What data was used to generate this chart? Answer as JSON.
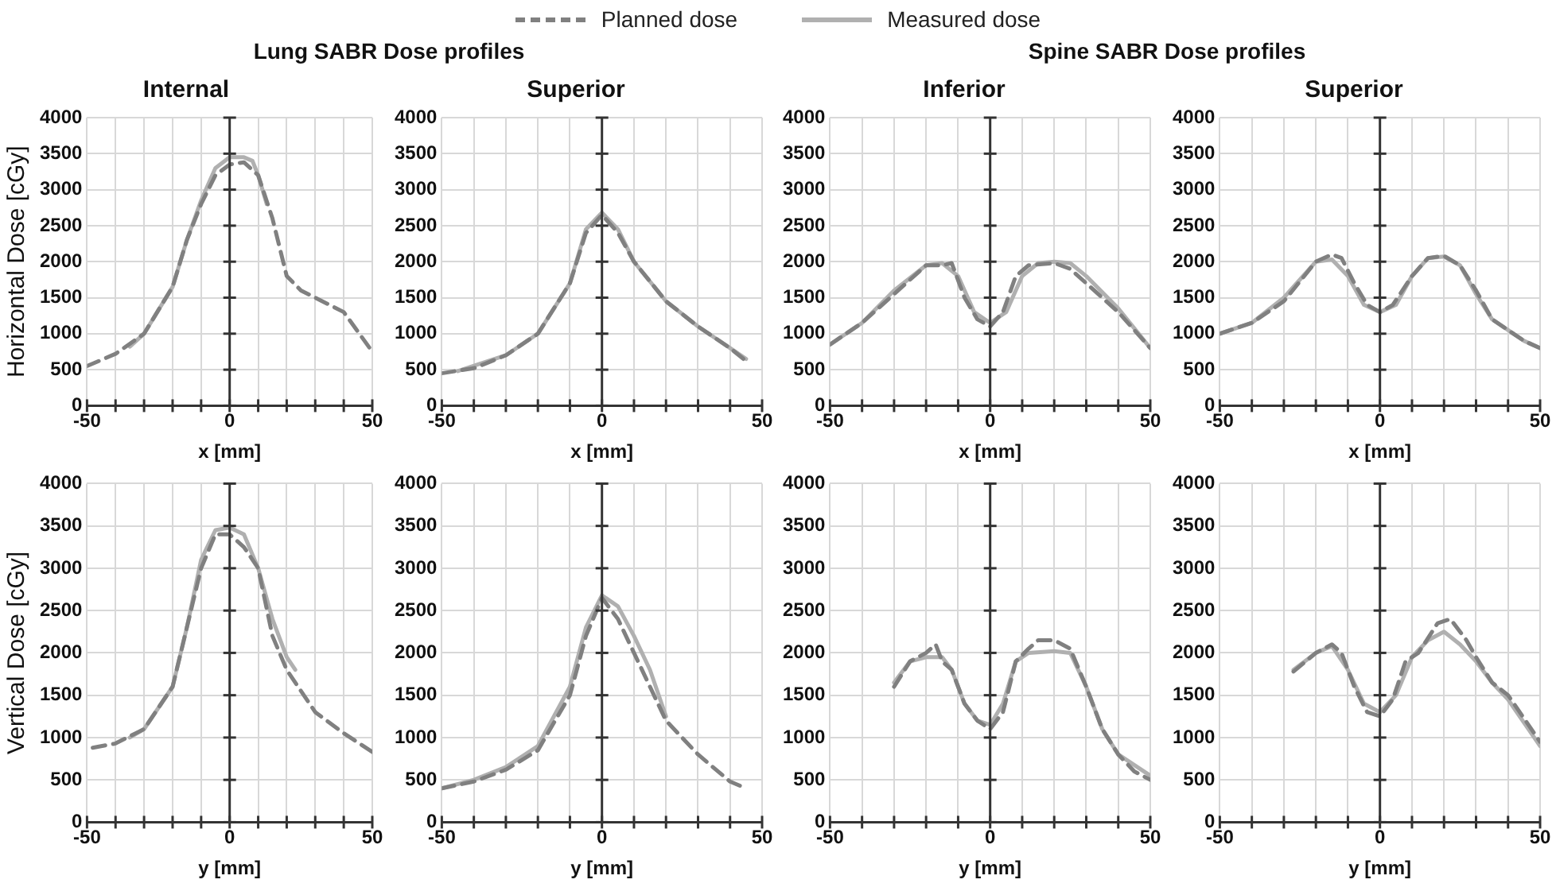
{
  "chart_data": [
    {
      "type": "line",
      "title": "Internal",
      "ylabel": "Horizontal Dose [cGy]",
      "xlabel": "x [mm]",
      "annotations": [
        "Lung SABR Dose profiles"
      ],
      "legend": "top",
      "grid": true,
      "marker": "none",
      "xlim": [
        -50,
        50
      ],
      "xticks": [
        -50,
        {
          "value": -40,
          "label": null
        },
        {
          "value": -30,
          "label": null
        },
        {
          "value": -20,
          "label": null
        },
        {
          "value": -10,
          "label": null
        },
        0,
        {
          "value": 10,
          "label": null
        },
        {
          "value": 20,
          "label": null
        },
        {
          "value": 30,
          "label": null
        },
        {
          "value": 40,
          "label": null
        },
        50
      ],
      "ylim": [
        0,
        4000
      ],
      "yticks": [
        0,
        500,
        1000,
        1500,
        2000,
        2500,
        3000,
        3500,
        4000
      ],
      "ref_lines": [
        {
          "axis": "x",
          "value": 0,
          "color": "#333333"
        }
      ],
      "series": [
        {
          "name": "Planned dose",
          "color": "#808080",
          "line_style": "dashed",
          "x": [
            -50,
            -40,
            -30,
            -20,
            -15,
            -10,
            -5,
            0,
            5,
            10,
            15,
            20,
            25,
            30,
            40,
            50
          ],
          "values": [
            550,
            720,
            1000,
            1650,
            2300,
            2800,
            3200,
            3350,
            3380,
            3200,
            2600,
            1800,
            1600,
            1500,
            1300,
            750
          ]
        },
        {
          "name": "Measured dose",
          "color": "#b0b0b0",
          "line_style": "solid",
          "x": [
            -35,
            -30,
            -20,
            -15,
            -10,
            -5,
            0,
            5,
            8,
            10,
            13
          ],
          "values": [
            820,
            1000,
            1650,
            2300,
            2850,
            3300,
            3450,
            3450,
            3400,
            3200,
            2800
          ]
        }
      ]
    },
    {
      "type": "line",
      "title": "Superior",
      "xlabel": "x [mm]",
      "grid": true,
      "marker": "none",
      "xlim": [
        -50,
        50
      ],
      "xticks": [
        -50,
        {
          "value": -40,
          "label": null
        },
        {
          "value": -30,
          "label": null
        },
        {
          "value": -20,
          "label": null
        },
        {
          "value": -10,
          "label": null
        },
        0,
        {
          "value": 10,
          "label": null
        },
        {
          "value": 20,
          "label": null
        },
        {
          "value": 30,
          "label": null
        },
        {
          "value": 40,
          "label": null
        },
        50
      ],
      "ylim": [
        0,
        4000
      ],
      "yticks": [
        0,
        500,
        1000,
        1500,
        2000,
        2500,
        3000,
        3500,
        4000
      ],
      "ref_lines": [
        {
          "axis": "x",
          "value": 0,
          "color": "#333333"
        }
      ],
      "series": [
        {
          "color": "#808080",
          "line_style": "dashed",
          "x": [
            -50,
            -40,
            -30,
            -20,
            -10,
            -5,
            0,
            5,
            10,
            20,
            30,
            40,
            45
          ],
          "values": [
            450,
            520,
            700,
            1000,
            1700,
            2400,
            2650,
            2400,
            2000,
            1450,
            1100,
            800,
            620
          ]
        },
        {
          "color": "#b0b0b0",
          "line_style": "solid",
          "x": [
            -45,
            -30,
            -20,
            -10,
            -5,
            0,
            5,
            10,
            20,
            30,
            40,
            45
          ],
          "values": [
            480,
            700,
            1000,
            1700,
            2450,
            2680,
            2450,
            2000,
            1450,
            1100,
            800,
            650
          ]
        }
      ]
    },
    {
      "type": "line",
      "title": "Inferior",
      "xlabel": "x [mm]",
      "annotations": [
        "Spine SABR Dose profiles"
      ],
      "grid": true,
      "marker": "none",
      "xlim": [
        -50,
        50
      ],
      "xticks": [
        -50,
        {
          "value": -40,
          "label": null
        },
        {
          "value": -30,
          "label": null
        },
        {
          "value": -20,
          "label": null
        },
        {
          "value": -10,
          "label": null
        },
        0,
        {
          "value": 10,
          "label": null
        },
        {
          "value": 20,
          "label": null
        },
        {
          "value": 30,
          "label": null
        },
        {
          "value": 40,
          "label": null
        },
        50
      ],
      "ylim": [
        0,
        4000
      ],
      "yticks": [
        0,
        500,
        1000,
        1500,
        2000,
        2500,
        3000,
        3500,
        4000
      ],
      "ref_lines": [
        {
          "axis": "x",
          "value": 0,
          "color": "#333333"
        }
      ],
      "series": [
        {
          "color": "#808080",
          "line_style": "dashed",
          "x": [
            -50,
            -40,
            -30,
            -20,
            -15,
            -12,
            -8,
            -4,
            0,
            4,
            8,
            12,
            20,
            25,
            30,
            40,
            50
          ],
          "values": [
            850,
            1150,
            1550,
            1950,
            1950,
            1980,
            1500,
            1200,
            1100,
            1300,
            1800,
            1950,
            1980,
            1900,
            1700,
            1300,
            800
          ]
        },
        {
          "color": "#b0b0b0",
          "line_style": "solid",
          "x": [
            -50,
            -40,
            -30,
            -20,
            -15,
            -10,
            -5,
            0,
            5,
            10,
            15,
            20,
            25,
            30,
            40,
            50
          ],
          "values": [
            850,
            1150,
            1600,
            1950,
            1980,
            1800,
            1300,
            1150,
            1300,
            1800,
            1980,
            2000,
            1980,
            1800,
            1350,
            800
          ]
        }
      ]
    },
    {
      "type": "line",
      "title": "Superior",
      "xlabel": "x [mm]",
      "grid": true,
      "marker": "none",
      "xlim": [
        -50,
        50
      ],
      "xticks": [
        -50,
        {
          "value": -40,
          "label": null
        },
        {
          "value": -30,
          "label": null
        },
        {
          "value": -20,
          "label": null
        },
        {
          "value": -10,
          "label": null
        },
        0,
        {
          "value": 10,
          "label": null
        },
        {
          "value": 20,
          "label": null
        },
        {
          "value": 30,
          "label": null
        },
        {
          "value": 40,
          "label": null
        },
        50
      ],
      "ylim": [
        0,
        4000
      ],
      "yticks": [
        0,
        500,
        1000,
        1500,
        2000,
        2500,
        3000,
        3500,
        4000
      ],
      "ref_lines": [
        {
          "axis": "x",
          "value": 0,
          "color": "#333333"
        }
      ],
      "series": [
        {
          "color": "#808080",
          "line_style": "dashed",
          "x": [
            -50,
            -40,
            -30,
            -20,
            -15,
            -12,
            -8,
            -4,
            0,
            4,
            10,
            15,
            20,
            25,
            30,
            35,
            45,
            50
          ],
          "values": [
            1000,
            1150,
            1450,
            2000,
            2100,
            2050,
            1700,
            1400,
            1300,
            1400,
            1800,
            2050,
            2080,
            1950,
            1600,
            1200,
            900,
            800
          ]
        },
        {
          "color": "#b0b0b0",
          "line_style": "solid",
          "x": [
            -50,
            -40,
            -30,
            -20,
            -15,
            -10,
            -5,
            0,
            5,
            10,
            15,
            20,
            25,
            30,
            35,
            45,
            50
          ],
          "values": [
            1000,
            1150,
            1500,
            2000,
            2030,
            1800,
            1400,
            1300,
            1400,
            1800,
            2050,
            2070,
            1950,
            1550,
            1200,
            900,
            800
          ]
        }
      ]
    },
    {
      "type": "line",
      "ylabel": "Vertical Dose [cGy]",
      "xlabel": "y [mm]",
      "grid": true,
      "marker": "none",
      "xlim": [
        -50,
        50
      ],
      "xticks": [
        -50,
        {
          "value": -40,
          "label": null
        },
        {
          "value": -30,
          "label": null
        },
        {
          "value": -20,
          "label": null
        },
        {
          "value": -10,
          "label": null
        },
        0,
        {
          "value": 10,
          "label": null
        },
        {
          "value": 20,
          "label": null
        },
        {
          "value": 30,
          "label": null
        },
        {
          "value": 40,
          "label": null
        },
        50
      ],
      "ylim": [
        0,
        4000
      ],
      "yticks": [
        0,
        500,
        1000,
        1500,
        2000,
        2500,
        3000,
        3500,
        4000
      ],
      "ref_lines": [
        {
          "axis": "x",
          "value": 0,
          "color": "#333333"
        }
      ],
      "series": [
        {
          "color": "#808080",
          "line_style": "dashed",
          "x": [
            -48,
            -40,
            -30,
            -20,
            -15,
            -10,
            -5,
            0,
            5,
            10,
            15,
            20,
            30,
            40,
            50
          ],
          "values": [
            880,
            930,
            1100,
            1600,
            2300,
            3000,
            3400,
            3400,
            3250,
            3000,
            2200,
            1800,
            1300,
            1050,
            830
          ]
        },
        {
          "color": "#b0b0b0",
          "line_style": "solid",
          "x": [
            -35,
            -30,
            -20,
            -15,
            -10,
            -5,
            0,
            5,
            10,
            15,
            20,
            23
          ],
          "values": [
            1000,
            1100,
            1600,
            2300,
            3100,
            3450,
            3480,
            3400,
            3000,
            2400,
            1950,
            1800
          ]
        }
      ]
    },
    {
      "type": "line",
      "xlabel": "y [mm]",
      "grid": true,
      "marker": "none",
      "xlim": [
        -50,
        50
      ],
      "xticks": [
        -50,
        {
          "value": -40,
          "label": null
        },
        {
          "value": -30,
          "label": null
        },
        {
          "value": -20,
          "label": null
        },
        {
          "value": -10,
          "label": null
        },
        0,
        {
          "value": 10,
          "label": null
        },
        {
          "value": 20,
          "label": null
        },
        {
          "value": 30,
          "label": null
        },
        {
          "value": 40,
          "label": null
        },
        50
      ],
      "ylim": [
        0,
        4000
      ],
      "yticks": [
        0,
        500,
        1000,
        1500,
        2000,
        2500,
        3000,
        3500,
        4000
      ],
      "ref_lines": [
        {
          "axis": "x",
          "value": 0,
          "color": "#333333"
        }
      ],
      "series": [
        {
          "color": "#808080",
          "line_style": "dashed",
          "x": [
            -50,
            -40,
            -30,
            -20,
            -10,
            -5,
            0,
            5,
            10,
            15,
            20,
            30,
            40,
            45
          ],
          "values": [
            400,
            480,
            620,
            850,
            1500,
            2200,
            2650,
            2400,
            2000,
            1600,
            1200,
            800,
            480,
            400
          ]
        },
        {
          "color": "#b0b0b0",
          "line_style": "solid",
          "x": [
            -50,
            -40,
            -30,
            -20,
            -10,
            -5,
            0,
            5,
            10,
            15,
            20
          ],
          "values": [
            400,
            500,
            650,
            900,
            1600,
            2300,
            2680,
            2550,
            2200,
            1800,
            1250
          ]
        }
      ]
    },
    {
      "type": "line",
      "xlabel": "y [mm]",
      "grid": true,
      "marker": "none",
      "xlim": [
        -50,
        50
      ],
      "xticks": [
        -50,
        {
          "value": -40,
          "label": null
        },
        {
          "value": -30,
          "label": null
        },
        {
          "value": -20,
          "label": null
        },
        {
          "value": -10,
          "label": null
        },
        0,
        {
          "value": 10,
          "label": null
        },
        {
          "value": 20,
          "label": null
        },
        {
          "value": 30,
          "label": null
        },
        {
          "value": 40,
          "label": null
        },
        50
      ],
      "ylim": [
        0,
        4000
      ],
      "yticks": [
        0,
        500,
        1000,
        1500,
        2000,
        2500,
        3000,
        3500,
        4000
      ],
      "ref_lines": [
        {
          "axis": "x",
          "value": 0,
          "color": "#333333"
        }
      ],
      "series": [
        {
          "color": "#808080",
          "line_style": "dashed",
          "x": [
            -30,
            -25,
            -20,
            -17,
            -15,
            -12,
            -8,
            -4,
            0,
            4,
            8,
            12,
            15,
            20,
            25,
            30,
            35,
            40,
            45,
            50
          ],
          "values": [
            1600,
            1900,
            2000,
            2100,
            1900,
            1800,
            1400,
            1200,
            1100,
            1300,
            1900,
            2050,
            2150,
            2150,
            2050,
            1600,
            1100,
            800,
            600,
            500
          ]
        },
        {
          "color": "#b0b0b0",
          "line_style": "solid",
          "x": [
            -30,
            -25,
            -20,
            -15,
            -12,
            -8,
            -4,
            0,
            4,
            8,
            12,
            20,
            25,
            30,
            35,
            40,
            50
          ],
          "values": [
            1650,
            1900,
            1950,
            1950,
            1800,
            1400,
            1200,
            1150,
            1400,
            1900,
            2000,
            2020,
            2000,
            1600,
            1100,
            800,
            550
          ]
        }
      ]
    },
    {
      "type": "line",
      "xlabel": "y [mm]",
      "grid": true,
      "marker": "none",
      "xlim": [
        -50,
        50
      ],
      "xticks": [
        -50,
        {
          "value": -40,
          "label": null
        },
        {
          "value": -30,
          "label": null
        },
        {
          "value": -20,
          "label": null
        },
        {
          "value": -10,
          "label": null
        },
        0,
        {
          "value": 10,
          "label": null
        },
        {
          "value": 20,
          "label": null
        },
        {
          "value": 30,
          "label": null
        },
        {
          "value": 40,
          "label": null
        },
        50
      ],
      "ylim": [
        0,
        4000
      ],
      "yticks": [
        0,
        500,
        1000,
        1500,
        2000,
        2500,
        3000,
        3500,
        4000
      ],
      "ref_lines": [
        {
          "axis": "x",
          "value": 0,
          "color": "#333333"
        }
      ],
      "series": [
        {
          "color": "#808080",
          "line_style": "dashed",
          "x": [
            -27,
            -20,
            -15,
            -12,
            -8,
            -4,
            0,
            4,
            8,
            12,
            18,
            22,
            27,
            30,
            35,
            40,
            50
          ],
          "values": [
            1780,
            2000,
            2100,
            2000,
            1600,
            1300,
            1250,
            1450,
            1900,
            2000,
            2350,
            2400,
            2150,
            1950,
            1650,
            1500,
            950
          ]
        },
        {
          "color": "#b0b0b0",
          "line_style": "solid",
          "x": [
            -27,
            -20,
            -15,
            -10,
            -5,
            0,
            5,
            10,
            15,
            20,
            25,
            30,
            35,
            40,
            50
          ],
          "values": [
            1800,
            2000,
            2080,
            1800,
            1400,
            1300,
            1500,
            1950,
            2150,
            2250,
            2100,
            1900,
            1650,
            1450,
            900
          ]
        }
      ]
    }
  ]
}
